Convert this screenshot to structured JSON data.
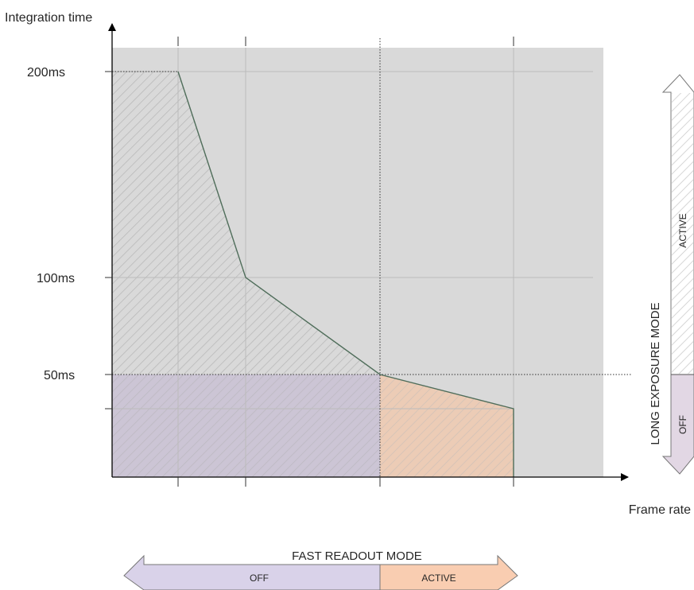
{
  "diagram": {
    "y_axis_label": "Integration time",
    "x_axis_label": "Frame rate",
    "y_ticks": [
      "200ms",
      "100ms",
      "50ms"
    ],
    "fast_readout": {
      "title": "FAST READOUT MODE",
      "off_label": "OFF",
      "active_label": "ACTIVE"
    },
    "long_exposure": {
      "title": "LONG EXPOSURE MODE",
      "active_label": "ACTIVE",
      "off_label": "OFF"
    }
  },
  "colors": {
    "plot_background": "#d9d9d9",
    "off_region": "#ccc5d5",
    "active_region": "#ecccb6",
    "off_arrow": "#d9d2e9",
    "active_arrow": "#f9cdb1",
    "curve": "#4f6d5a"
  }
}
